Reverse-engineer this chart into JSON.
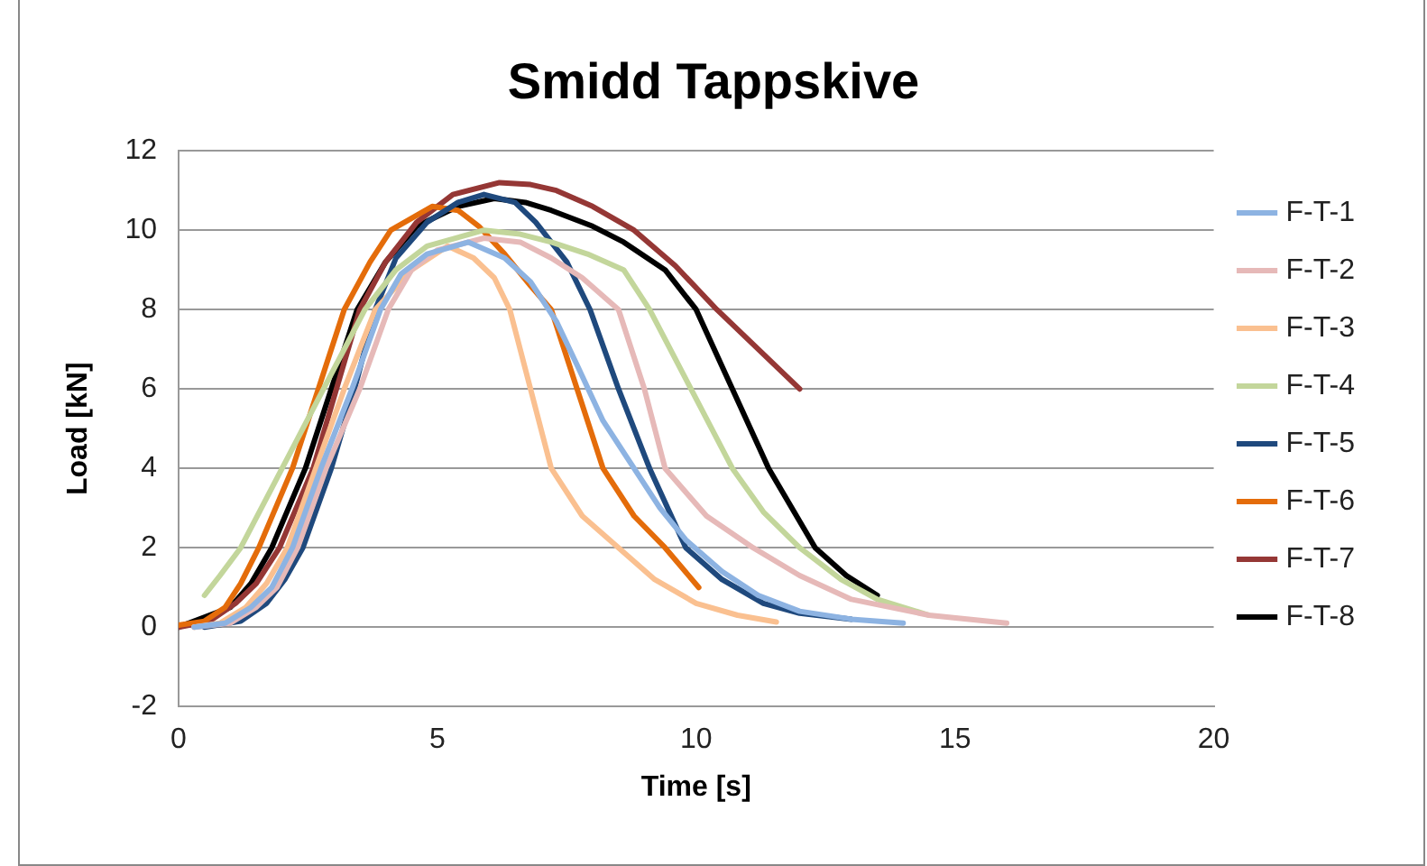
{
  "chart_data": {
    "type": "line",
    "title": "Smidd Tappskive",
    "xlabel": "Time [s]",
    "ylabel": "Load [kN]",
    "xlim": [
      0,
      20
    ],
    "xticks": [
      0,
      5,
      10,
      15,
      20
    ],
    "ylim": [
      -2,
      12
    ],
    "yticks": [
      -2,
      0,
      2,
      4,
      6,
      8,
      10,
      12
    ],
    "grid": "y",
    "legend": "right",
    "marker": "none",
    "line_style": "solid",
    "series": [
      {
        "name": "F-T-1",
        "color": "#8db3e2",
        "x": [
          0.3,
          0.9,
          1.4,
          1.8,
          2.2,
          2.75,
          3.35,
          3.9,
          4.3,
          4.8,
          5.6,
          6.3,
          6.8,
          7.3,
          7.7,
          8.2,
          8.8,
          9.3,
          9.8,
          10.5,
          11.2,
          12,
          13,
          14
        ],
        "values": [
          0,
          0.1,
          0.5,
          1.0,
          2,
          4,
          6,
          8,
          8.9,
          9.4,
          9.7,
          9.3,
          8.7,
          7.7,
          6.6,
          5.2,
          4,
          3.0,
          2.2,
          1.4,
          0.8,
          0.4,
          0.2,
          0.1
        ]
      },
      {
        "name": "F-T-2",
        "color": "#e6b9b8",
        "x": [
          0.3,
          1.0,
          1.5,
          1.9,
          2.3,
          2.85,
          3.5,
          4.05,
          4.5,
          5,
          5.9,
          6.6,
          7.2,
          7.8,
          8.5,
          9.0,
          9.4,
          10.2,
          11.1,
          12,
          13,
          14.5,
          16
        ],
        "values": [
          0,
          0.1,
          0.5,
          1.0,
          2,
          4,
          6,
          8,
          9.0,
          9.5,
          9.8,
          9.7,
          9.3,
          8.8,
          8,
          6,
          4,
          2.8,
          2,
          1.3,
          0.7,
          0.3,
          0.1
        ]
      },
      {
        "name": "F-T-3",
        "color": "#fac090",
        "x": [
          0.3,
          0.8,
          1.3,
          1.7,
          2.1,
          2.65,
          3.2,
          3.8,
          4.5,
          5.2,
          5.7,
          6.1,
          6.4,
          6.8,
          7.2,
          7.8,
          8.5,
          9.2,
          10,
          10.8,
          11.55
        ],
        "values": [
          0,
          0.1,
          0.5,
          1.1,
          2,
          4,
          6,
          8,
          9.0,
          9.6,
          9.3,
          8.8,
          8,
          6,
          4,
          2.8,
          2,
          1.2,
          0.6,
          0.3,
          0.13
        ]
      },
      {
        "name": "F-T-4",
        "color": "#c3d69b",
        "x": [
          0.5,
          0.8,
          1.2,
          1.6,
          2.0,
          2.8,
          3.6,
          4.2,
          4.8,
          5.9,
          6.6,
          7.2,
          7.9,
          8.6,
          9.1,
          9.9,
          10.7,
          11.3,
          12.0,
          12.8,
          13.5,
          14.5
        ],
        "values": [
          0.8,
          1.3,
          2,
          3,
          4,
          6,
          8,
          9.0,
          9.6,
          10,
          9.9,
          9.7,
          9.4,
          9.0,
          8,
          6,
          4,
          2.9,
          2,
          1.2,
          0.7,
          0.3
        ]
      },
      {
        "name": "F-T-5",
        "color": "#1f497d",
        "x": [
          0.5,
          1.2,
          1.7,
          2.05,
          2.4,
          2.95,
          3.4,
          3.8,
          4.2,
          4.8,
          5.4,
          5.9,
          6.5,
          6.9,
          7.5,
          7.95,
          8.5,
          9.1,
          9.8,
          10.5,
          11.3,
          12,
          13.0
        ],
        "values": [
          0,
          0.15,
          0.6,
          1.2,
          2,
          4,
          6,
          8,
          9.3,
          10.2,
          10.7,
          10.9,
          10.7,
          10.2,
          9.2,
          8,
          6,
          4,
          2,
          1.2,
          0.6,
          0.35,
          0.2
        ]
      },
      {
        "name": "F-T-6",
        "color": "#e46c0a",
        "x": [
          0,
          0.5,
          0.9,
          1.2,
          1.55,
          2.2,
          2.7,
          3.2,
          3.7,
          4.1,
          4.9,
          5.4,
          5.8,
          6.3,
          6.8,
          7.2,
          7.7,
          8.2,
          8.8,
          9.4,
          10.05
        ],
        "values": [
          0.05,
          0.15,
          0.5,
          1.1,
          2,
          4,
          6,
          8,
          9.2,
          10,
          10.6,
          10.5,
          10.1,
          9.4,
          8.6,
          8,
          6,
          4,
          2.8,
          2,
          1.0
        ]
      },
      {
        "name": "F-T-7",
        "color": "#953735",
        "x": [
          0,
          0.6,
          1.1,
          1.5,
          1.95,
          2.6,
          3.05,
          3.5,
          4.0,
          4.6,
          5.3,
          6.2,
          6.8,
          7.3,
          8.0,
          8.8,
          9.6,
          10.4,
          11.2,
          12.0
        ],
        "values": [
          0,
          0.15,
          0.6,
          1.1,
          2,
          4,
          6,
          8,
          9.2,
          10.2,
          10.9,
          11.2,
          11.15,
          11.0,
          10.6,
          10,
          9.1,
          8,
          7,
          6.0
        ]
      },
      {
        "name": "F-T-8",
        "color": "#000000",
        "x": [
          0,
          1.0,
          1.4,
          1.8,
          2.45,
          2.95,
          3.45,
          4.0,
          4.6,
          5.4,
          6.1,
          6.7,
          7.2,
          8.0,
          8.6,
          9.4,
          10.0,
          10.7,
          11.4,
          12.3,
          12.9,
          13.5
        ],
        "values": [
          0,
          0.5,
          1.1,
          2,
          4,
          6,
          8,
          9.2,
          10.1,
          10.6,
          10.8,
          10.7,
          10.5,
          10.1,
          9.7,
          9.0,
          8,
          6,
          4,
          2,
          1.3,
          0.8
        ]
      }
    ]
  }
}
